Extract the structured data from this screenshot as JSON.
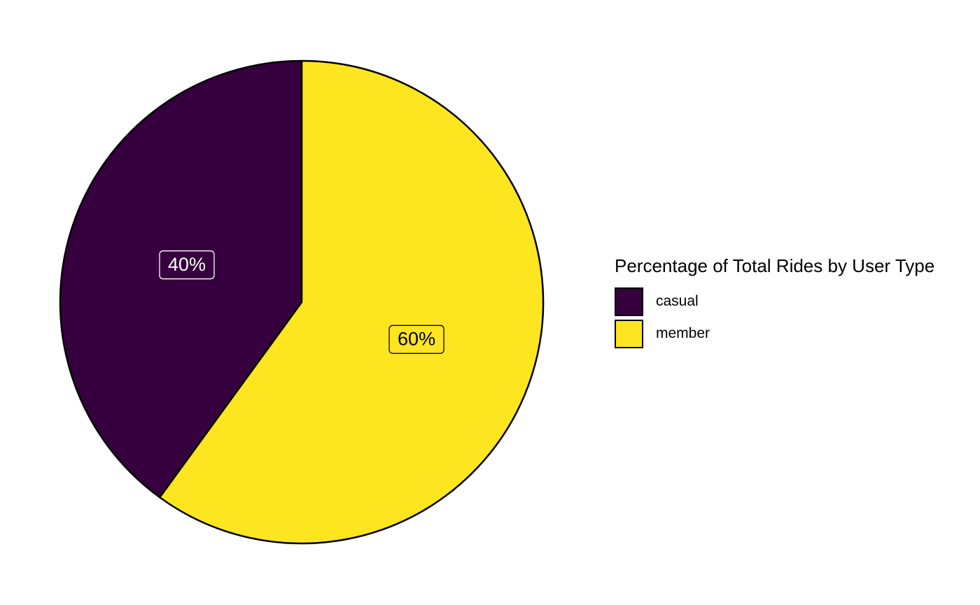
{
  "chart_data": {
    "type": "pie",
    "legend_title": "Percentage of Total Rides by User Type",
    "legend_position": "right",
    "slices": [
      {
        "label": "casual",
        "value": 40,
        "display": "40%",
        "color": "#35003D",
        "label_color": "#FFFFFF"
      },
      {
        "label": "member",
        "value": 60,
        "display": "60%",
        "color": "#FDE51F",
        "label_color": "#000000"
      }
    ]
  }
}
